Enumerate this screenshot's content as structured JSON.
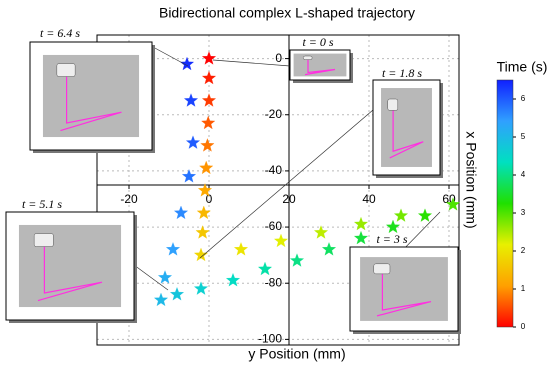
{
  "chart_data": {
    "type": "scatter",
    "title": "Bidirectional complex L-shaped trajectory",
    "x_label": "y Position (mm)",
    "y_label": "x Position (mm)",
    "xlim": [
      -28,
      62.5
    ],
    "ylim": [
      -102,
      8.4
    ],
    "xticks": [
      -20,
      0,
      20,
      40,
      60
    ],
    "yticks": [
      0,
      -20,
      -40,
      -60,
      -80,
      -100
    ],
    "x_axis_at": -45,
    "y_axis_at": 20,
    "grid": true,
    "marker": "star",
    "x": [
      0,
      0,
      0,
      -0.2,
      -0.4,
      -0.7,
      -1,
      -1.3,
      -1.6,
      -2,
      8,
      18,
      28,
      38,
      48,
      61,
      54,
      46,
      38,
      30,
      22,
      14,
      6,
      -2,
      -8,
      -12,
      -11,
      -9,
      -7,
      -5,
      -4,
      -4.5,
      -5.5
    ],
    "y": [
      0,
      -7,
      -15,
      -23,
      -31,
      -39,
      -47,
      -55,
      -62,
      -70,
      -68,
      -65,
      -62,
      -59,
      -56,
      -52,
      -56,
      -60,
      -64,
      -68,
      -72,
      -75,
      -79,
      -82,
      -84,
      -86,
      -78,
      -68,
      -55,
      -42,
      -30,
      -15,
      -2
    ],
    "t": [
      0,
      0.2,
      0.4,
      0.6,
      0.8,
      1.0,
      1.2,
      1.4,
      1.6,
      1.8,
      2.0,
      2.2,
      2.4,
      2.6,
      2.8,
      3.0,
      3.2,
      3.4,
      3.6,
      3.8,
      4.0,
      4.2,
      4.4,
      4.6,
      4.8,
      5.0,
      5.2,
      5.4,
      5.6,
      5.8,
      6.0,
      6.2,
      6.4
    ],
    "colorbar": {
      "label": "Time (s)",
      "lim": [
        0,
        6.5
      ],
      "ticks": [
        0,
        1,
        2,
        3,
        4,
        5,
        6
      ],
      "colors": [
        "#ff0000",
        "#ffa000",
        "#e8f000",
        "#20e000",
        "#00e0c0",
        "#30a0ff",
        "#1020ff"
      ]
    },
    "insets": [
      {
        "label": "t = 6.4 s"
      },
      {
        "label": "t = 0 s"
      },
      {
        "label": "t = 1.8 s"
      },
      {
        "label": "t = 5.1 s"
      },
      {
        "label": "t = 3 s"
      }
    ]
  }
}
